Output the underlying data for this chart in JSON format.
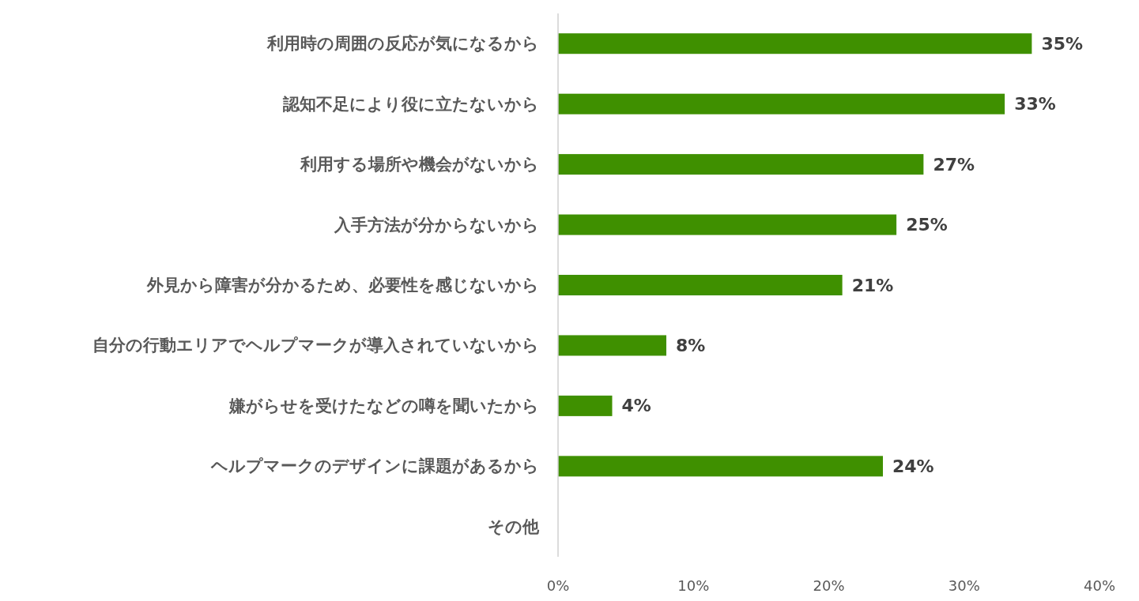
{
  "chart_data": {
    "type": "bar",
    "orientation": "horizontal",
    "categories": [
      "利用時の周囲の反応が気になるから",
      "認知不足により役に立たないから",
      "利用する場所や機会がないから",
      "入手方法が分からないから",
      "外見から障害が分かるため、必要性を感じないから",
      "自分の行動エリアでヘルプマークが導入されていないから",
      "嫌がらせを受けたなどの噂を聞いたから",
      "ヘルプマークのデザインに課題があるから",
      "その他"
    ],
    "values": [
      35,
      33,
      27,
      25,
      21,
      8,
      4,
      24,
      null
    ],
    "value_labels": [
      "35%",
      "33%",
      "27%",
      "25%",
      "21%",
      "8%",
      "4%",
      "24%",
      null
    ],
    "color": "#3f9000",
    "xlim": [
      0,
      40
    ],
    "xticks": [
      {
        "value": 0,
        "label": "0%"
      },
      {
        "value": 10,
        "label": "10%"
      },
      {
        "value": 20,
        "label": "20%"
      },
      {
        "value": 30,
        "label": "30%"
      },
      {
        "value": 40,
        "label": "40%"
      }
    ],
    "grid": false
  }
}
